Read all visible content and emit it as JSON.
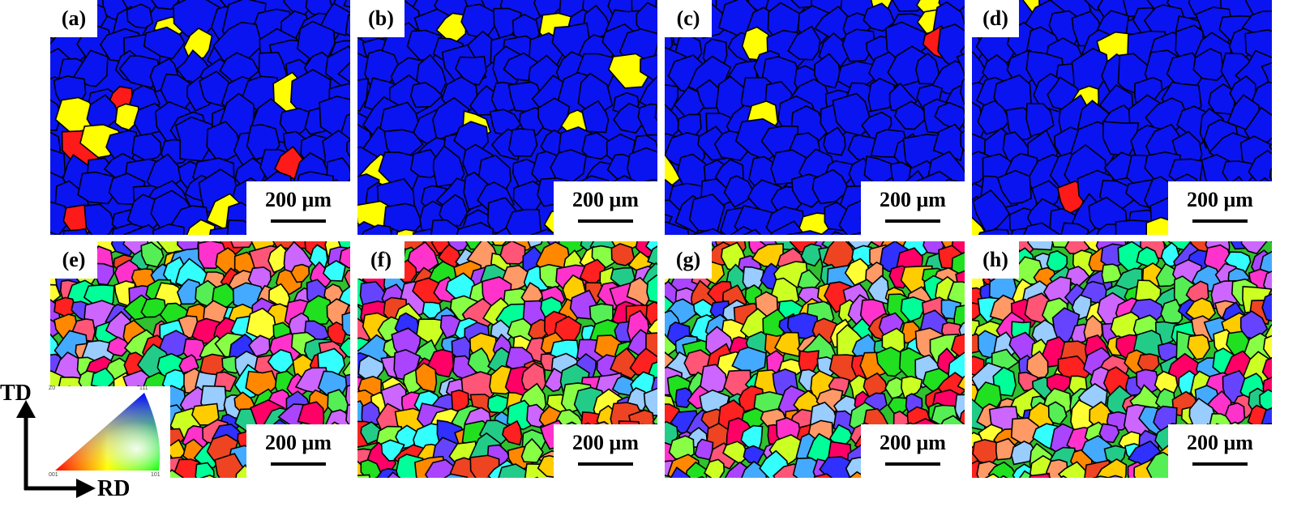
{
  "panels": [
    {
      "label": "(a)",
      "map": "phase",
      "scale": "200 μm"
    },
    {
      "label": "(b)",
      "map": "phase",
      "scale": "200 μm"
    },
    {
      "label": "(c)",
      "map": "phase",
      "scale": "200 μm"
    },
    {
      "label": "(d)",
      "map": "phase",
      "scale": "200 μm"
    },
    {
      "label": "(e)",
      "map": "orientation",
      "scale": "200 μm"
    },
    {
      "label": "(f)",
      "map": "orientation",
      "scale": "200 μm"
    },
    {
      "label": "(g)",
      "map": "orientation",
      "scale": "200 μm"
    },
    {
      "label": "(h)",
      "map": "orientation",
      "scale": "200 μm"
    }
  ],
  "phase_colors": {
    "matrix": "#0a14f0",
    "minor_phase_1": "#ffff00",
    "minor_phase_2": "#ff1a1a",
    "boundary": "#000000"
  },
  "ipf_legend": {
    "corner_top": "111",
    "corner_bottom_left": "001",
    "corner_bottom_right": "101",
    "corner_left_top": "Z0"
  },
  "axes": {
    "vertical": "TD",
    "horizontal": "RD"
  }
}
